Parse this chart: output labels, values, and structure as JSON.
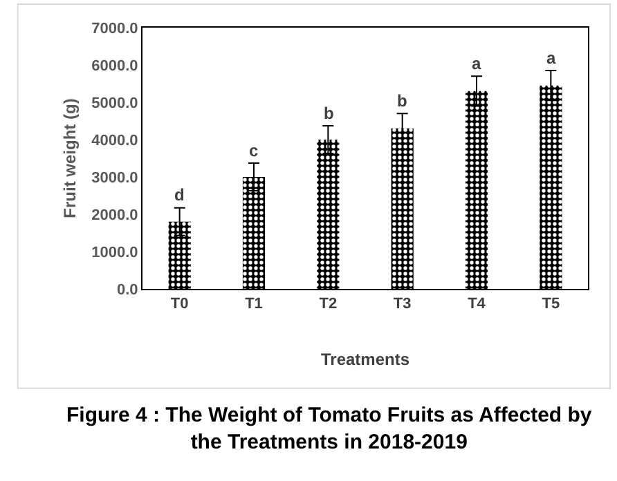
{
  "chart_data": {
    "type": "bar",
    "title": "Figure 4 : The Weight of Tomato Fruits as Affected by the Treatments in 2018-2019",
    "xlabel": "Treatments",
    "ylabel": "Fruit weight (g)",
    "categories": [
      "T0",
      "T1",
      "T2",
      "T3",
      "T4",
      "T5"
    ],
    "values": [
      1800,
      3000,
      4000,
      4300,
      5300,
      5450
    ],
    "errors": [
      370,
      370,
      370,
      400,
      400,
      400
    ],
    "color": "#000000",
    "ylim": [
      0,
      7000
    ],
    "yticks": [
      {
        "value": 0,
        "label": "0.0"
      },
      {
        "value": 1000,
        "label": "1000.0"
      },
      {
        "value": 2000,
        "label": "2000.0"
      },
      {
        "value": 3000,
        "label": "3000.0"
      },
      {
        "value": 4000,
        "label": "4000.0"
      },
      {
        "value": 5000,
        "label": "5000.0"
      },
      {
        "value": 6000,
        "label": "6000.0"
      },
      {
        "value": 7000,
        "label": "7000.0"
      }
    ],
    "annotations": [
      {
        "text": "d",
        "x": "T0",
        "y": 2170
      },
      {
        "text": "c",
        "x": "T1",
        "y": 3370
      },
      {
        "text": "b",
        "x": "T2",
        "y": 4370
      },
      {
        "text": "b",
        "x": "T3",
        "y": 4700
      },
      {
        "text": "a",
        "x": "T4",
        "y": 5700
      },
      {
        "text": "a",
        "x": "T5",
        "y": 5850
      }
    ]
  }
}
